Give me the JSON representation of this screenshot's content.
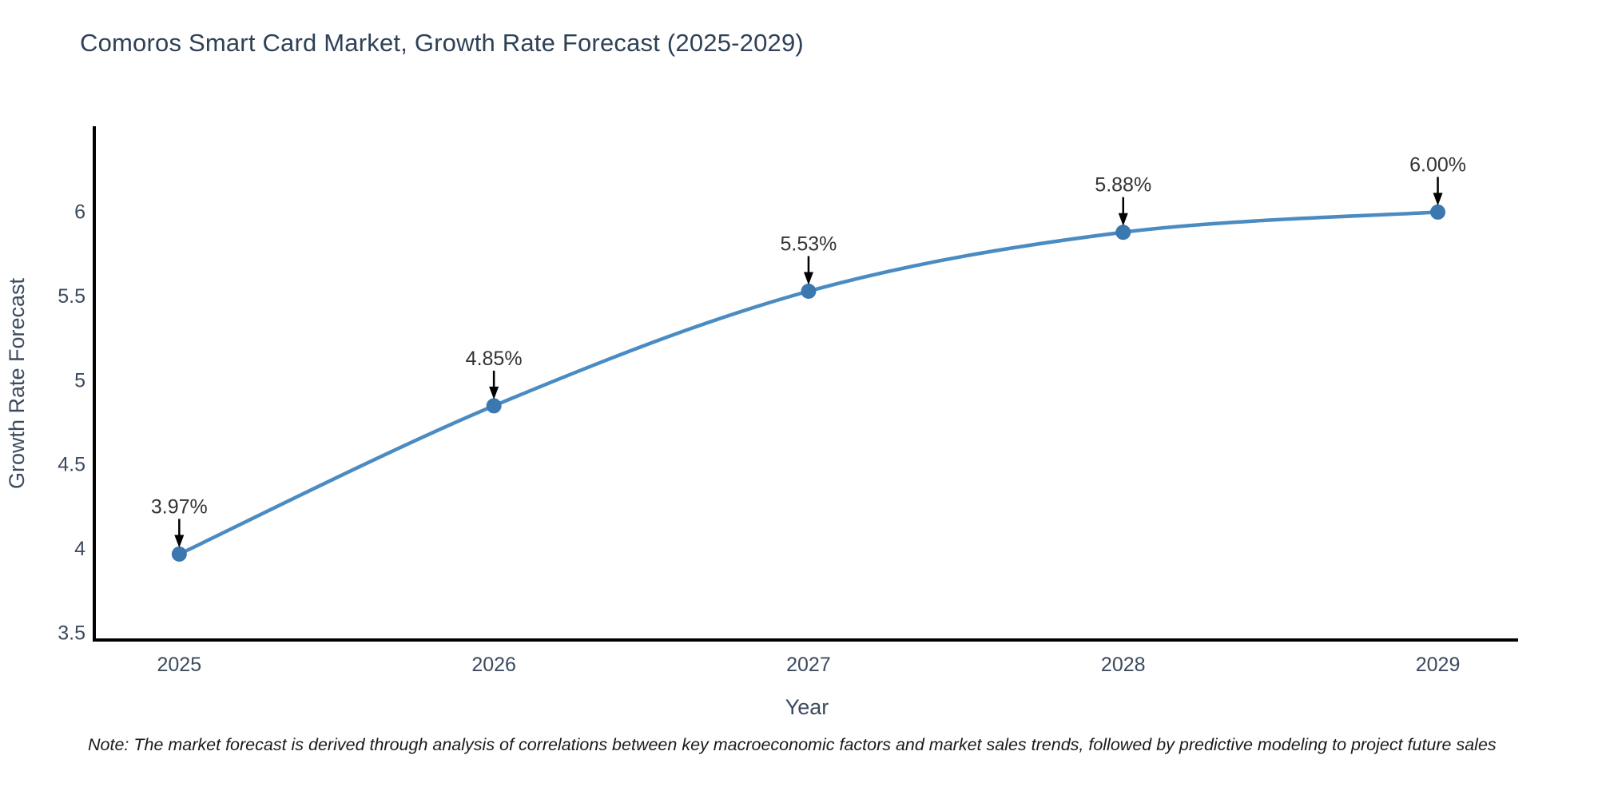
{
  "page": {
    "background": "#ffffff"
  },
  "title": {
    "text": "Comoros Smart Card Market, Growth Rate Forecast (2025-2029)"
  },
  "note": {
    "text": "Note: The market forecast is derived through analysis of correlations between key macroeconomic factors and market sales trends, followed by predictive modeling to project future sales"
  },
  "chart_data": {
    "type": "line",
    "title": "Comoros Smart Card Market, Growth Rate Forecast (2025-2029)",
    "xlabel": "Year",
    "ylabel": "Growth Rate Forecast",
    "x": [
      2025,
      2026,
      2027,
      2028,
      2029
    ],
    "values": [
      3.97,
      4.85,
      5.53,
      5.88,
      6.0
    ],
    "point_labels": [
      "3.97%",
      "4.85%",
      "5.53%",
      "5.88%",
      "6.00%"
    ],
    "xtick_labels": [
      "2025",
      "2026",
      "2027",
      "2028",
      "2029"
    ],
    "yticks": [
      3.5,
      4,
      4.5,
      5,
      5.5,
      6
    ],
    "ytick_labels": [
      "3.5",
      "4",
      "4.5",
      "5",
      "5.5",
      "6"
    ],
    "xlim": [
      2024.73,
      2029.25
    ],
    "ylim": [
      3.46,
      6.5
    ],
    "grid": false,
    "legend": null,
    "smooth": true,
    "annotations_have_arrows": true,
    "colors": {
      "line": "#4a8bc2",
      "marker": "#3c78b0",
      "arrow": "#000000",
      "spine": "#000000",
      "tick_text": "#3b4a5e",
      "annotation_text": "#333333",
      "title_text": "#2e4156"
    }
  }
}
